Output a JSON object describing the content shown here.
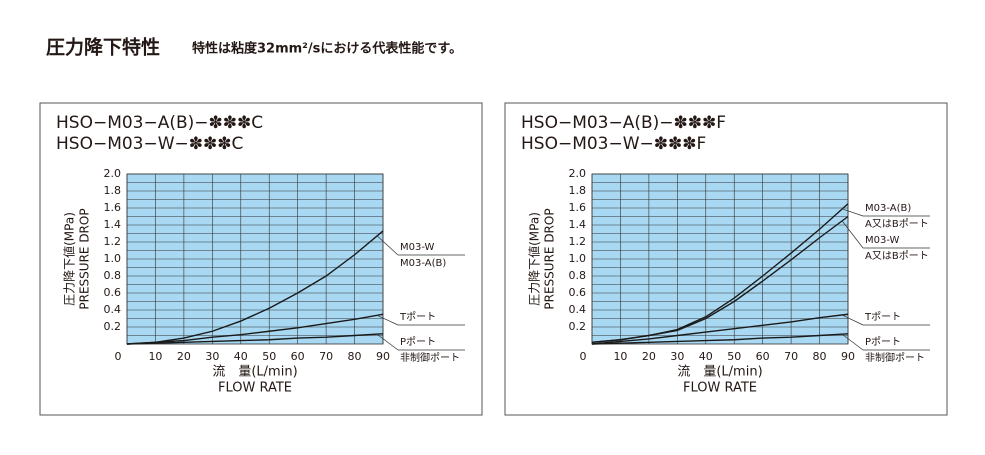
{
  "header": {
    "title": "圧力降下特性",
    "subtitle": "特性は粘度32mm²/sにおける代表性能です。"
  },
  "chart_data": [
    {
      "type": "line",
      "title_lines": [
        "HSO−M03−A(B)−✽✽✽C",
        "HSO−M03−W−✽✽✽C"
      ],
      "y_label_lines": [
        "圧力降下値(MPa)",
        "PRESSURE DROP"
      ],
      "x_label_lines": [
        "流　量(L/min)",
        "FLOW RATE"
      ],
      "x": [
        0,
        10,
        20,
        30,
        40,
        50,
        60,
        70,
        80,
        90
      ],
      "series": [
        {
          "labels": [
            "M03-W",
            "M03-A(B)"
          ],
          "color": "#1a1a1a",
          "values": [
            0,
            0.02,
            0.07,
            0.15,
            0.27,
            0.42,
            0.6,
            0.8,
            1.05,
            1.33
          ]
        },
        {
          "labels": [
            "Tポート"
          ],
          "color": "#1a1a1a",
          "values": [
            0,
            0.02,
            0.04,
            0.08,
            0.11,
            0.15,
            0.19,
            0.24,
            0.29,
            0.35
          ]
        },
        {
          "labels": [
            "Pポート",
            "非制御ポート"
          ],
          "color": "#1a1a1a",
          "values": [
            0,
            0.01,
            0.02,
            0.03,
            0.04,
            0.05,
            0.07,
            0.08,
            0.1,
            0.12
          ]
        }
      ],
      "xlim": [
        0,
        90
      ],
      "ylim": [
        0,
        2
      ],
      "xticks": [
        0,
        10,
        20,
        30,
        40,
        50,
        60,
        70,
        80,
        90
      ],
      "yticks": [
        0.2,
        0.4,
        0.6,
        0.8,
        {
          "value": 1,
          "label": "1.0"
        },
        1.2,
        1.4,
        1.6,
        1.8,
        {
          "value": 2,
          "label": "2.0"
        }
      ],
      "minor_grid": [
        0.1,
        0.3,
        0.5,
        0.7,
        0.9,
        1.1,
        1.3,
        1.5,
        1.7,
        1.9
      ],
      "grid": true,
      "plot_color": "#a9d9f2"
    },
    {
      "type": "line",
      "title_lines": [
        "HSO−M03−A(B)−✽✽✽F",
        "HSO−M03−W−✽✽✽F"
      ],
      "y_label_lines": [
        "圧力降下値(MPa)",
        "PRESSURE DROP"
      ],
      "x_label_lines": [
        "流　量(L/min)",
        "FLOW RATE"
      ],
      "x": [
        0,
        10,
        20,
        30,
        40,
        50,
        60,
        70,
        80,
        90
      ],
      "series": [
        {
          "labels": [
            "M03-A(B)",
            "A又はBポート"
          ],
          "color": "#1a1a1a",
          "values": [
            0.02,
            0.05,
            0.1,
            0.17,
            0.32,
            0.54,
            0.8,
            1.07,
            1.35,
            1.65
          ]
        },
        {
          "labels": [
            "M03-W",
            "A又はBポート"
          ],
          "color": "#1a1a1a",
          "values": [
            0.02,
            0.05,
            0.1,
            0.16,
            0.3,
            0.5,
            0.74,
            0.99,
            1.25,
            1.5
          ]
        },
        {
          "labels": [
            "Tポート"
          ],
          "color": "#1a1a1a",
          "values": [
            0,
            0.03,
            0.06,
            0.1,
            0.14,
            0.18,
            0.22,
            0.26,
            0.31,
            0.35
          ]
        },
        {
          "labels": [
            "Pポート",
            "非制御ポート"
          ],
          "color": "#1a1a1a",
          "values": [
            0,
            0.01,
            0.02,
            0.03,
            0.04,
            0.05,
            0.07,
            0.08,
            0.1,
            0.12
          ]
        }
      ],
      "xlim": [
        0,
        90
      ],
      "ylim": [
        0,
        2
      ],
      "xticks": [
        0,
        10,
        20,
        30,
        40,
        50,
        60,
        70,
        80,
        90
      ],
      "yticks": [
        0.2,
        0.4,
        0.6,
        0.8,
        {
          "value": 1,
          "label": "1.0"
        },
        1.2,
        1.4,
        1.6,
        1.8,
        {
          "value": 2,
          "label": "2.0"
        }
      ],
      "minor_grid": [
        0.1,
        0.3,
        0.5,
        0.7,
        0.9,
        1.1,
        1.3,
        1.5,
        1.7,
        1.9
      ],
      "grid": true,
      "plot_color": "#a9d9f2"
    }
  ]
}
